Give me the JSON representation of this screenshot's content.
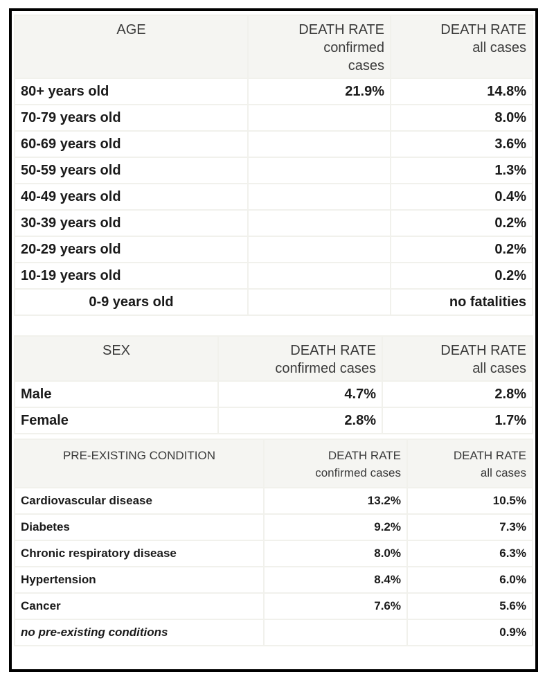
{
  "age_table": {
    "headers": {
      "group": "AGE",
      "confirmed": [
        "DEATH RATE",
        "confirmed",
        "cases"
      ],
      "all": [
        "DEATH RATE",
        "all cases"
      ]
    },
    "rows": [
      {
        "label": "80+ years old",
        "confirmed": "21.9%",
        "all": "14.8%"
      },
      {
        "label": "70-79 years old",
        "confirmed": "",
        "all": "8.0%"
      },
      {
        "label": "60-69 years old",
        "confirmed": "",
        "all": "3.6%"
      },
      {
        "label": "50-59 years old",
        "confirmed": "",
        "all": "1.3%"
      },
      {
        "label": "40-49 years old",
        "confirmed": "",
        "all": "0.4%"
      },
      {
        "label": "30-39 years old",
        "confirmed": "",
        "all": "0.2%"
      },
      {
        "label": "20-29 years old",
        "confirmed": "",
        "all": "0.2%"
      },
      {
        "label": "10-19 years old",
        "confirmed": "",
        "all": "0.2%"
      },
      {
        "label": "0-9 years old",
        "confirmed": "",
        "all": "no fatalities"
      }
    ]
  },
  "sex_table": {
    "headers": {
      "group": "SEX",
      "confirmed": [
        "DEATH RATE",
        "confirmed cases"
      ],
      "all": [
        "DEATH RATE",
        "all cases"
      ]
    },
    "rows": [
      {
        "label": "Male",
        "confirmed": "4.7%",
        "all": "2.8%"
      },
      {
        "label": "Female",
        "confirmed": "2.8%",
        "all": "1.7%"
      }
    ]
  },
  "condition_table": {
    "headers": {
      "group": "PRE-EXISTING CONDITION",
      "confirmed": [
        "DEATH RATE",
        "confirmed cases"
      ],
      "all": [
        "DEATH RATE",
        "all cases"
      ]
    },
    "rows": [
      {
        "label": "Cardiovascular disease",
        "confirmed": "13.2%",
        "all": "10.5%"
      },
      {
        "label": "Diabetes",
        "confirmed": "9.2%",
        "all": "7.3%"
      },
      {
        "label": "Chronic respiratory disease",
        "confirmed": "8.0%",
        "all": "6.3%"
      },
      {
        "label": "Hypertension",
        "confirmed": "8.4%",
        "all": "6.0%"
      },
      {
        "label": "Cancer",
        "confirmed": "7.6%",
        "all": "5.6%"
      },
      {
        "label": "no pre-existing conditions",
        "confirmed": "",
        "all": "0.9%"
      }
    ]
  },
  "colors": {
    "frame_border": "#000000",
    "header_bg": "#f5f5f2",
    "grid_line": "#f1f1ec",
    "text": "#1a1a1a"
  }
}
